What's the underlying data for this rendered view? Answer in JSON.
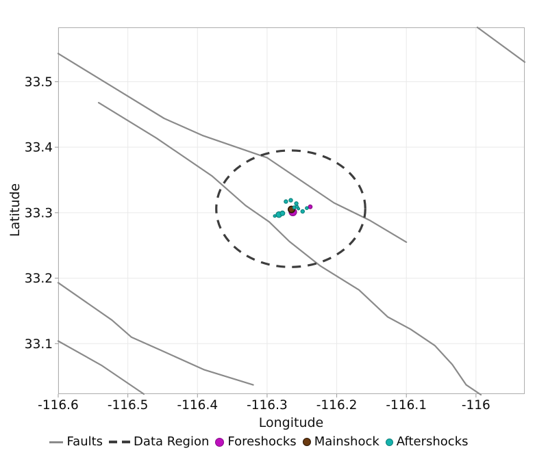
{
  "chart_data": {
    "type": "scatter",
    "title": "",
    "xlabel": "Longitude",
    "ylabel": "Latitude",
    "xlim": [
      -116.6,
      -115.93
    ],
    "ylim": [
      33.023,
      33.583
    ],
    "grid": true,
    "legend_position": "bottom",
    "xticks": [
      {
        "v": -116.6,
        "label": "-116.6"
      },
      {
        "v": -116.5,
        "label": "-116.5"
      },
      {
        "v": -116.4,
        "label": "-116.4"
      },
      {
        "v": -116.3,
        "label": "-116.3"
      },
      {
        "v": -116.2,
        "label": "-116.2"
      },
      {
        "v": -116.1,
        "label": "-116.1"
      },
      {
        "v": -116.0,
        "label": "-116"
      }
    ],
    "yticks": [
      {
        "v": 33.5,
        "label": "33.5"
      },
      {
        "v": 33.4,
        "label": "33.4"
      },
      {
        "v": 33.3,
        "label": "33.3"
      },
      {
        "v": 33.2,
        "label": "33.2"
      },
      {
        "v": 33.1,
        "label": "33.1"
      }
    ],
    "colors": {
      "grid": "#e9e9e9",
      "frame": "#adadad",
      "tick_text": "#0a0a0a",
      "faults": "#8a8a8a",
      "data_region": "#3d3d3d",
      "foreshocks": "#bd10bd",
      "foreshocks_stroke": "#850b85",
      "mainshock": "#6b3a10",
      "mainshock_stroke": "#2a1504",
      "aftershocks": "#16b3ad",
      "aftershocks_stroke": "#0c807b"
    },
    "series": [
      {
        "name": "Faults",
        "type": "line",
        "color": "#8a8a8a",
        "width": 2.2,
        "lines": [
          [
            [
              -116.6,
              33.543
            ],
            [
              -116.448,
              33.444
            ],
            [
              -116.393,
              33.418
            ],
            [
              -116.3,
              33.384
            ],
            [
              -116.204,
              33.315
            ],
            [
              -116.152,
              33.288
            ],
            [
              -116.1,
              33.255
            ]
          ],
          [
            [
              -116.542,
              33.468
            ],
            [
              -116.459,
              33.414
            ],
            [
              -116.379,
              33.356
            ],
            [
              -116.331,
              33.311
            ],
            [
              -116.297,
              33.286
            ],
            [
              -116.268,
              33.256
            ],
            [
              -116.224,
              33.219
            ],
            [
              -116.168,
              33.182
            ],
            [
              -116.127,
              33.141
            ],
            [
              -116.094,
              33.122
            ],
            [
              -116.059,
              33.097
            ],
            [
              -116.034,
              33.068
            ],
            [
              -116.014,
              33.037
            ],
            [
              -115.993,
              33.022
            ]
          ],
          [
            [
              -116.6,
              33.193
            ],
            [
              -116.523,
              33.136
            ],
            [
              -116.495,
              33.11
            ],
            [
              -116.455,
              33.091
            ],
            [
              -116.39,
              33.06
            ],
            [
              -116.32,
              33.037
            ]
          ],
          [
            [
              -116.6,
              33.104
            ],
            [
              -116.538,
              33.067
            ],
            [
              -116.477,
              33.023
            ]
          ],
          [
            [
              -115.998,
              33.583
            ],
            [
              -115.93,
              33.53
            ]
          ]
        ]
      },
      {
        "name": "Data Region",
        "type": "dashed-ellipse",
        "color": "#3d3d3d",
        "width": 3.2,
        "dash": "13 10",
        "center": [
          -116.266,
          33.306
        ],
        "rx_deg": 0.107,
        "ry_deg": 0.089
      },
      {
        "name": "Foreshocks",
        "type": "scatter",
        "color": "#bd10bd",
        "stroke": "#850b85",
        "points": [
          {
            "lon": -116.263,
            "lat": 33.301,
            "r": 5.5
          },
          {
            "lon": -116.238,
            "lat": 33.309,
            "r": 2.8
          }
        ]
      },
      {
        "name": "Mainshock",
        "type": "scatter",
        "color": "#6b3a10",
        "stroke": "#2a1504",
        "points": [
          {
            "lon": -116.265,
            "lat": 33.305,
            "r": 4.7
          }
        ]
      },
      {
        "name": "Aftershocks",
        "type": "scatter",
        "color": "#16b3ad",
        "stroke": "#0c807b",
        "points": [
          {
            "lon": -116.289,
            "lat": 33.295,
            "r": 2.0
          },
          {
            "lon": -116.283,
            "lat": 33.297,
            "r": 4.2
          },
          {
            "lon": -116.278,
            "lat": 33.299,
            "r": 3.4
          },
          {
            "lon": -116.273,
            "lat": 33.317,
            "r": 2.6
          },
          {
            "lon": -116.266,
            "lat": 33.319,
            "r": 2.6
          },
          {
            "lon": -116.258,
            "lat": 33.314,
            "r": 2.6
          },
          {
            "lon": -116.261,
            "lat": 33.308,
            "r": 2.4
          },
          {
            "lon": -116.257,
            "lat": 33.309,
            "r": 2.2
          },
          {
            "lon": -116.255,
            "lat": 33.306,
            "r": 1.8
          },
          {
            "lon": -116.249,
            "lat": 33.302,
            "r": 2.6
          },
          {
            "lon": -116.243,
            "lat": 33.307,
            "r": 2.2
          }
        ]
      }
    ]
  }
}
